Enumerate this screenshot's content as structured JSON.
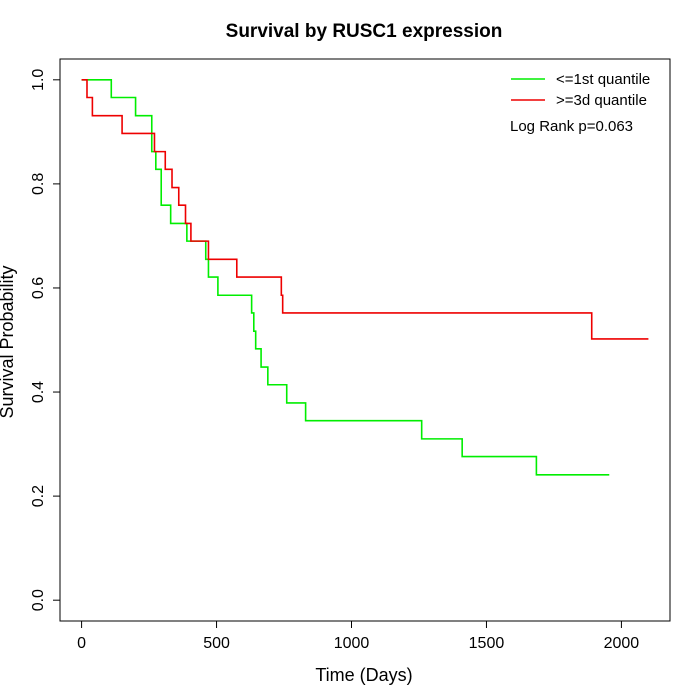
{
  "chart_data": {
    "type": "line",
    "title": "Survival by RUSC1 expression",
    "xlabel": "Time (Days)",
    "ylabel": "Survival Probability",
    "xlim": [
      -80,
      2180
    ],
    "ylim": [
      -0.04,
      1.04
    ],
    "xticks": [
      0,
      500,
      1000,
      1500,
      2000
    ],
    "yticks": [
      0.0,
      0.2,
      0.4,
      0.6,
      0.8,
      1.0
    ],
    "xtick_labels": [
      "0",
      "500",
      "1000",
      "1500",
      "2000"
    ],
    "ytick_labels": [
      "0.0",
      "0.2",
      "0.4",
      "0.6",
      "0.8",
      "1.0"
    ],
    "grid": false,
    "legend_position": "top-right",
    "annotation": "Log Rank p=0.063",
    "series": [
      {
        "name": "<=1st quantile",
        "color": "#00ee00",
        "step": true,
        "x": [
          0,
          110,
          200,
          260,
          275,
          295,
          330,
          390,
          460,
          470,
          505,
          630,
          638,
          645,
          650,
          665,
          690,
          760,
          830,
          1260,
          1410,
          1685,
          1955
        ],
        "y": [
          1.0,
          0.966,
          0.931,
          0.862,
          0.828,
          0.759,
          0.724,
          0.69,
          0.655,
          0.621,
          0.586,
          0.552,
          0.517,
          0.483,
          0.483,
          0.448,
          0.414,
          0.379,
          0.345,
          0.31,
          0.276,
          0.241,
          0.241
        ]
      },
      {
        "name": ">=3d quantile",
        "color": "#ee0000",
        "step": true,
        "x": [
          0,
          20,
          40,
          150,
          270,
          310,
          335,
          360,
          385,
          405,
          425,
          445,
          470,
          575,
          740,
          745,
          1890,
          2100
        ],
        "y": [
          1.0,
          0.966,
          0.931,
          0.897,
          0.862,
          0.828,
          0.793,
          0.759,
          0.724,
          0.69,
          0.69,
          0.69,
          0.655,
          0.621,
          0.586,
          0.552,
          0.502,
          0.502
        ]
      }
    ]
  }
}
